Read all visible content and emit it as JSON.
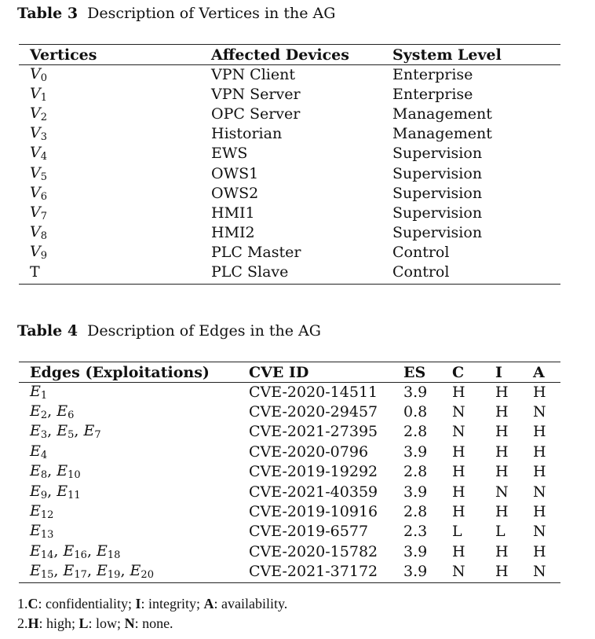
{
  "table3": {
    "caption_label": "Table 3",
    "caption_text": "Description of Vertices in the AG",
    "headers": [
      "Vertices",
      "Affected Devices",
      "System Level"
    ],
    "rows": [
      {
        "vertex": "V",
        "sub": "0",
        "device": "VPN Client",
        "level": "Enterprise"
      },
      {
        "vertex": "V",
        "sub": "1",
        "device": "VPN Server",
        "level": "Enterprise"
      },
      {
        "vertex": "V",
        "sub": "2",
        "device": "OPC Server",
        "level": "Management"
      },
      {
        "vertex": "V",
        "sub": "3",
        "device": "Historian",
        "level": "Management"
      },
      {
        "vertex": "V",
        "sub": "4",
        "device": "EWS",
        "level": "Supervision"
      },
      {
        "vertex": "V",
        "sub": "5",
        "device": "OWS1",
        "level": "Supervision"
      },
      {
        "vertex": "V",
        "sub": "6",
        "device": "OWS2",
        "level": "Supervision"
      },
      {
        "vertex": "V",
        "sub": "7",
        "device": "HMI1",
        "level": "Supervision"
      },
      {
        "vertex": "V",
        "sub": "8",
        "device": "HMI2",
        "level": "Supervision"
      },
      {
        "vertex": "V",
        "sub": "9",
        "device": "PLC Master",
        "level": "Control"
      },
      {
        "vertex": "T",
        "sub": "",
        "device": "PLC Slave",
        "level": "Control"
      }
    ]
  },
  "table4": {
    "caption_label": "Table 4",
    "caption_text": "Description of Edges in the AG",
    "headers": [
      "Edges (Exploitations)",
      "CVE ID",
      "ES",
      "C",
      "I",
      "A"
    ],
    "rows": [
      {
        "edges": [
          "1"
        ],
        "cve": "CVE-2020-14511",
        "es": "3.9",
        "c": "H",
        "i": "H",
        "a": "H"
      },
      {
        "edges": [
          "2",
          "6"
        ],
        "cve": "CVE-2020-29457",
        "es": "0.8",
        "c": "N",
        "i": "H",
        "a": "N"
      },
      {
        "edges": [
          "3",
          "5",
          "7"
        ],
        "cve": "CVE-2021-27395",
        "es": "2.8",
        "c": "N",
        "i": "H",
        "a": "H"
      },
      {
        "edges": [
          "4"
        ],
        "cve": "CVE-2020-0796",
        "es": "3.9",
        "c": "H",
        "i": "H",
        "a": "H"
      },
      {
        "edges": [
          "8",
          "10"
        ],
        "cve": "CVE-2019-19292",
        "es": "2.8",
        "c": "H",
        "i": "H",
        "a": "H"
      },
      {
        "edges": [
          "9",
          "11"
        ],
        "cve": "CVE-2021-40359",
        "es": "3.9",
        "c": "H",
        "i": "N",
        "a": "N"
      },
      {
        "edges": [
          "12"
        ],
        "cve": "CVE-2019-10916",
        "es": "2.8",
        "c": "H",
        "i": "H",
        "a": "H"
      },
      {
        "edges": [
          "13"
        ],
        "cve": "CVE-2019-6577",
        "es": "2.3",
        "c": "L",
        "i": "L",
        "a": "N"
      },
      {
        "edges": [
          "14",
          "16",
          "18"
        ],
        "cve": "CVE-2020-15782",
        "es": "3.9",
        "c": "H",
        "i": "H",
        "a": "H"
      },
      {
        "edges": [
          "15",
          "17",
          "19",
          "20"
        ],
        "cve": "CVE-2021-37172",
        "es": "3.9",
        "c": "N",
        "i": "H",
        "a": "N"
      }
    ]
  },
  "notes": [
    [
      {
        "t": "1."
      },
      {
        "t": "C",
        "b": true
      },
      {
        "t": ": confidentiality; "
      },
      {
        "t": "I",
        "b": true
      },
      {
        "t": ": integrity; "
      },
      {
        "t": "A",
        "b": true
      },
      {
        "t": ": availability."
      }
    ],
    [
      {
        "t": "2."
      },
      {
        "t": "H",
        "b": true
      },
      {
        "t": ": high; "
      },
      {
        "t": "L",
        "b": true
      },
      {
        "t": ": low; "
      },
      {
        "t": "N",
        "b": true
      },
      {
        "t": ": none."
      }
    ]
  ]
}
